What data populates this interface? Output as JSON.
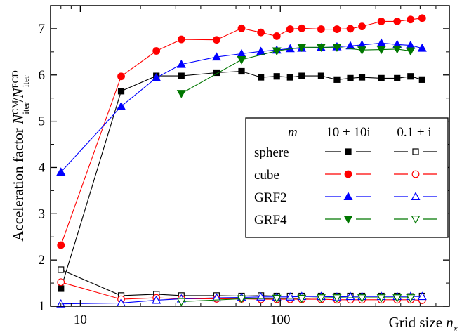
{
  "chart_data": {
    "type": "line",
    "x_scale": "log",
    "x_tick_labels": [
      {
        "value": 10,
        "label": "10"
      },
      {
        "value": 100,
        "label": "100"
      }
    ],
    "y_ticks": [
      1,
      2,
      3,
      4,
      5,
      6,
      7
    ],
    "xlim": [
      7.1,
      700
    ],
    "ylim": [
      1,
      7.5
    ],
    "xlabel": {
      "main": "Grid size ",
      "var": "n",
      "sub": "x"
    },
    "ylabel": {
      "main": "Acceleration factor ",
      "num": "N",
      "num_sup": "CM",
      "num_sub": "iter",
      "den": "N",
      "den_sup": "FCD",
      "den_sub": "iter"
    },
    "legend": {
      "placement": "right",
      "header_m": "m",
      "col1": "10 + 10i",
      "col2": "0.1 + i",
      "rows": [
        "sphere",
        "cube",
        "GRF2",
        "GRF4"
      ]
    },
    "series": [
      {
        "name": "sphere",
        "group": "10 + 10i",
        "color": "#000000",
        "marker": "square",
        "filled": true,
        "x": [
          8,
          16,
          24,
          32,
          48,
          64,
          80,
          96,
          112,
          128,
          160,
          192,
          224,
          256,
          320,
          384,
          448,
          512
        ],
        "y": [
          1.38,
          5.65,
          5.98,
          5.98,
          6.05,
          6.08,
          5.95,
          5.97,
          5.95,
          5.98,
          5.98,
          5.9,
          5.93,
          5.95,
          5.93,
          5.93,
          5.97,
          5.9
        ]
      },
      {
        "name": "cube",
        "group": "10 + 10i",
        "color": "#ff0000",
        "marker": "circle",
        "filled": true,
        "x": [
          8,
          16,
          24,
          32,
          48,
          64,
          80,
          96,
          112,
          128,
          160,
          192,
          224,
          256,
          320,
          384,
          448,
          512
        ],
        "y": [
          2.32,
          5.97,
          6.52,
          6.77,
          6.76,
          7.01,
          6.92,
          6.84,
          6.99,
          7.01,
          6.99,
          6.99,
          7.0,
          7.05,
          7.16,
          7.16,
          7.2,
          7.23
        ]
      },
      {
        "name": "GRF2",
        "group": "10 + 10i",
        "color": "#0000ff",
        "marker": "triangle-up",
        "filled": true,
        "x": [
          8,
          16,
          24,
          32,
          48,
          64,
          80,
          96,
          112,
          128,
          160,
          192,
          224,
          256,
          320,
          384,
          448,
          512
        ],
        "y": [
          3.9,
          5.32,
          5.94,
          6.23,
          6.39,
          6.46,
          6.51,
          6.54,
          6.57,
          6.58,
          6.59,
          6.61,
          6.63,
          6.65,
          6.69,
          6.66,
          6.64,
          6.58
        ]
      },
      {
        "name": "GRF4",
        "group": "10 + 10i",
        "color": "#007700",
        "marker": "triangle-down",
        "filled": true,
        "x": [
          32,
          64,
          96,
          128,
          160,
          192,
          256,
          320,
          384,
          448
        ],
        "y": [
          5.6,
          6.33,
          6.52,
          6.6,
          6.6,
          6.6,
          6.54,
          6.55,
          6.56,
          6.52
        ]
      },
      {
        "name": "sphere",
        "group": "0.1 + i",
        "color": "#000000",
        "marker": "square",
        "filled": false,
        "x": [
          8,
          16,
          24,
          32,
          48,
          64,
          80,
          96,
          112,
          128,
          160,
          192,
          224,
          256,
          320,
          384,
          448,
          512
        ],
        "y": [
          1.79,
          1.23,
          1.26,
          1.23,
          1.23,
          1.22,
          1.23,
          1.22,
          1.22,
          1.22,
          1.22,
          1.22,
          1.22,
          1.22,
          1.22,
          1.22,
          1.21,
          1.22
        ]
      },
      {
        "name": "cube",
        "group": "0.1 + i",
        "color": "#ff0000",
        "marker": "circle",
        "filled": false,
        "x": [
          8,
          16,
          24,
          32,
          48,
          64,
          80,
          96,
          112,
          128,
          160,
          192,
          224,
          256,
          320,
          384,
          448,
          512
        ],
        "y": [
          1.52,
          1.15,
          1.18,
          1.16,
          1.16,
          1.16,
          1.15,
          1.15,
          1.15,
          1.15,
          1.15,
          1.14,
          1.14,
          1.14,
          1.14,
          1.14,
          1.14,
          1.13
        ]
      },
      {
        "name": "GRF2",
        "group": "0.1 + i",
        "color": "#0000ff",
        "marker": "triangle-up",
        "filled": false,
        "x": [
          8,
          16,
          24,
          32,
          48,
          64,
          80,
          96,
          112,
          128,
          160,
          192,
          224,
          256,
          320,
          384,
          448,
          512
        ],
        "y": [
          1.05,
          1.07,
          1.13,
          1.16,
          1.18,
          1.19,
          1.2,
          1.2,
          1.2,
          1.21,
          1.21,
          1.2,
          1.21,
          1.21,
          1.21,
          1.21,
          1.21,
          1.21
        ]
      },
      {
        "name": "GRF4",
        "group": "0.1 + i",
        "color": "#007700",
        "marker": "triangle-down",
        "filled": false,
        "x": [
          32,
          64,
          96,
          128,
          160,
          192,
          256,
          320,
          384,
          448
        ],
        "y": [
          1.1,
          1.16,
          1.17,
          1.17,
          1.18,
          1.18,
          1.18,
          1.18,
          1.18,
          1.18
        ]
      }
    ]
  }
}
